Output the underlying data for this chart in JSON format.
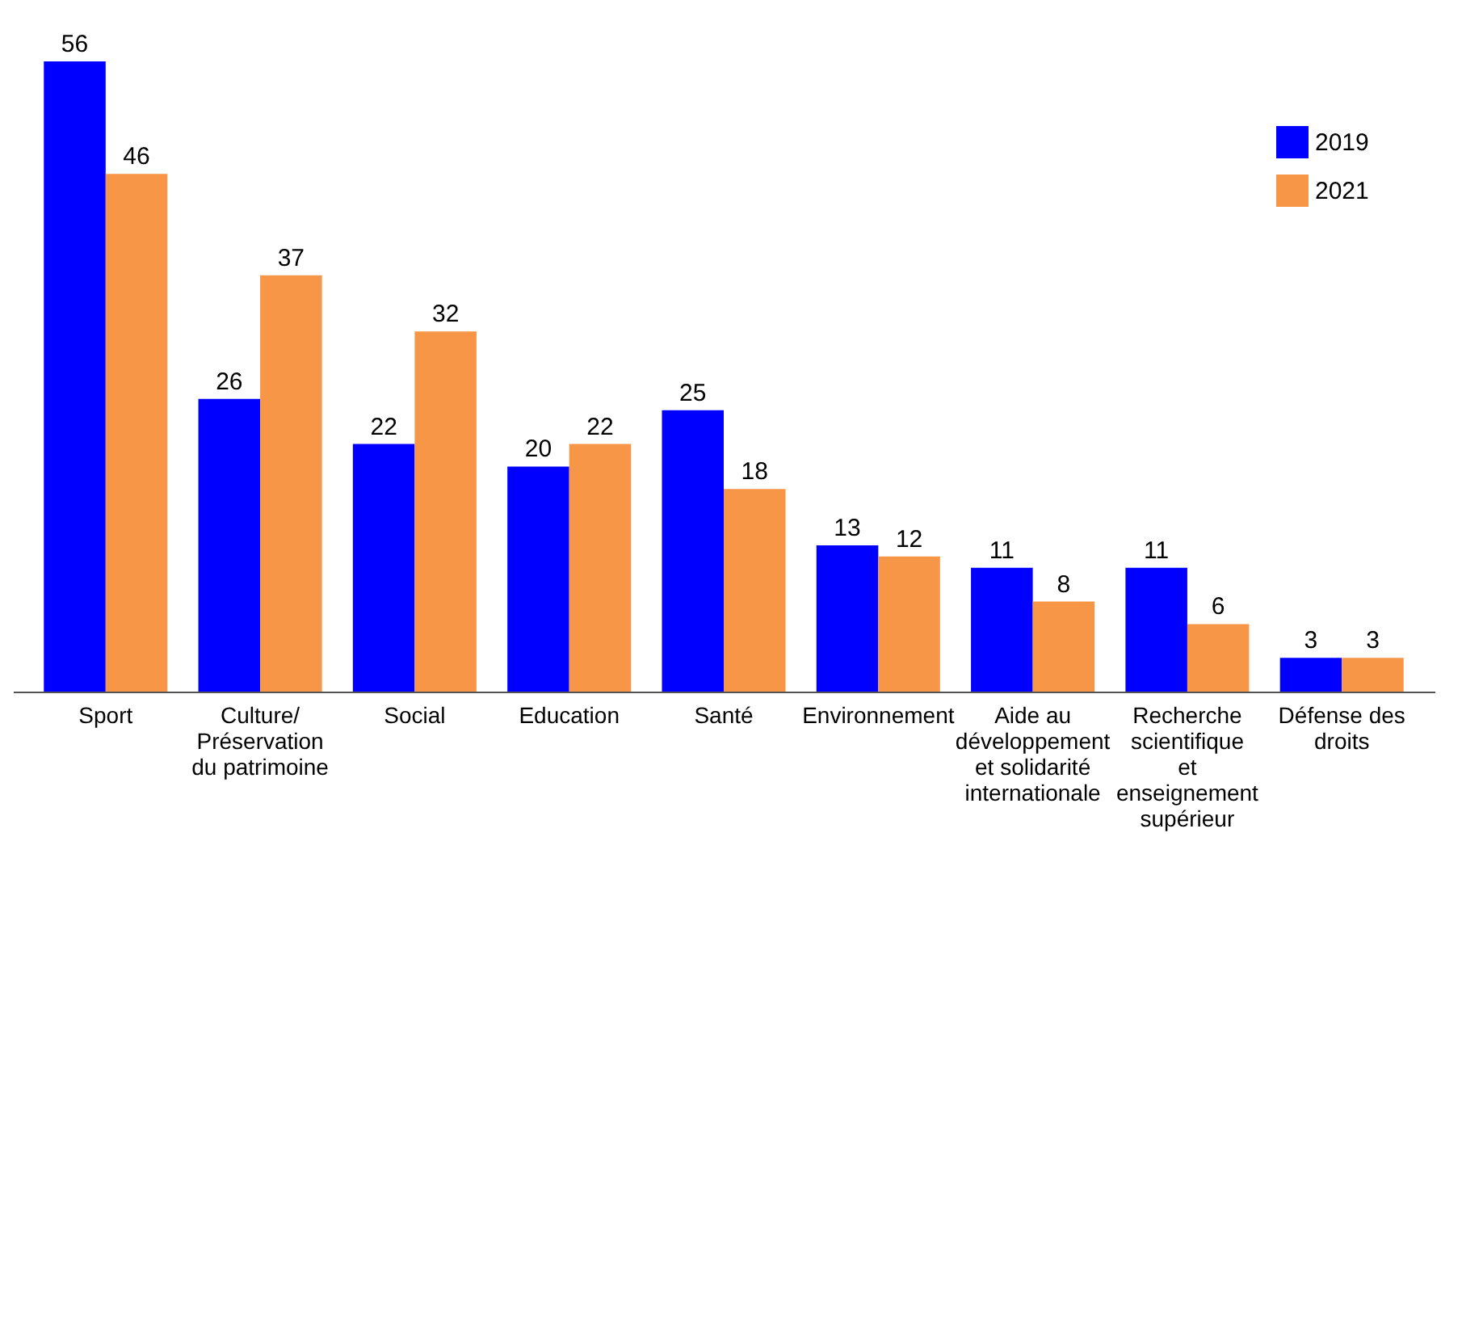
{
  "chart_data": {
    "type": "bar",
    "categories": [
      "Sport",
      "Culture/Préservation du patrimoine",
      "Social",
      "Education",
      "Santé",
      "Environnement",
      "Aide au développement et solidarité internationale",
      "Recherche scientifique et enseignement supérieur",
      "Défense des droits"
    ],
    "series": [
      {
        "name": "2019",
        "color": "#0000ff",
        "values": [
          56,
          26,
          22,
          20,
          25,
          13,
          11,
          11,
          3
        ]
      },
      {
        "name": "2021",
        "color": "#f79646",
        "values": [
          46,
          37,
          32,
          22,
          18,
          12,
          8,
          6,
          3
        ]
      }
    ],
    "data_labels": true,
    "legend": "top right",
    "grid": false
  }
}
